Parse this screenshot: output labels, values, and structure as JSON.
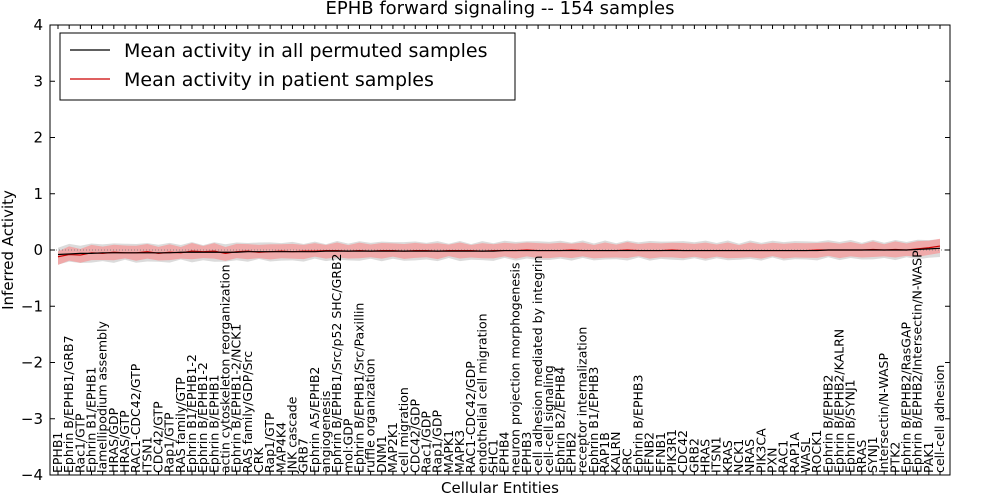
{
  "chart_data": {
    "type": "line",
    "title": "EPHB forward signaling -- 154 samples",
    "xlabel": "Cellular Entities",
    "ylabel": "Inferred Activity",
    "ylim": [
      -4,
      4
    ],
    "yticks": [
      -4,
      -3,
      -2,
      -1,
      0,
      1,
      2,
      3,
      4
    ],
    "legend_position": "top-left",
    "grid": false,
    "colors": {
      "permuted_line": "#000000",
      "patient_line": "#cc0000",
      "permuted_band": "#cccccc",
      "patient_band": "#ff8080",
      "zero_reference": "#888888"
    },
    "categories": [
      "EPHB1",
      "Ephrin B/EPHB1/GRB7",
      "Rac1/GTP",
      "Ephrin B1/EPHB1",
      "lamellipodium assembly",
      "HRAS/GDP",
      "HRAS/GTP",
      "RAC1-CDC42/GTP",
      "ITSN1",
      "CDC42/GTP",
      "Rap1/GTP",
      "RAS family/GTP",
      "Ephrin B1/EPHB1-2",
      "Ephrin B/EPHB1-2",
      "Ephrin B/EPHB1",
      "actin cytoskeleton reorganization",
      "Ephrin B/EPHB1-2/NCK1",
      "RAS family/GDP/Src",
      "CRK",
      "Rap1/GTP",
      "MAP4K4",
      "JNK cascade",
      "GRB7",
      "Ephrin A5/EPHB2",
      "angiogenesis",
      "Ephrin B/EPHB1/Src/p52 SHC/GRB2",
      "mol:GDP",
      "Ephrin B/EPHB1/Src/Paxillin",
      "ruffle organization",
      "DNM1",
      "MAP2K1",
      "cell migration",
      "CDC42/GDP",
      "Rac1/GDP",
      "Rap1/GDP",
      "MAPK1",
      "MAPK3",
      "RAC1-CDC42/GDP",
      "endothelial cell migration",
      "SHC1",
      "EPHB4",
      "neuron projection morphogenesis",
      "EPHB3",
      "cell adhesion mediated by integrin",
      "cell-cell signaling",
      "Ephrin B2/EPHB4",
      "EPHB2",
      "receptor internalization",
      "Ephrin B1/EPHB3",
      "RAP1B",
      "KALRN",
      "SRC",
      "Ephrin B/EPHB3",
      "EFNB2",
      "EFNB1",
      "PIK3R1",
      "CDC42",
      "GRB2",
      "HRAS",
      "ITSN1",
      "KRAS",
      "NCK1",
      "NRAS",
      "PIK3CA",
      "PXN",
      "RAC1",
      "RAP1A",
      "WASL",
      "ROCK1",
      "Ephrin B/EPHB2",
      "Ephrin B/EPHB2/KALRN",
      "Ephrin B/SYNJ1",
      "RRAS",
      "SYNJ1",
      "Intersectin/N-WASP",
      "PTK2",
      "Ephrin B/EPHB2/RasGAP",
      "Ephrin B/EPHB2/Intersectin/N-WASP",
      "PAK1",
      "cell-cell adhesion"
    ],
    "series": [
      {
        "name": "Mean activity in all permuted samples",
        "values": [
          -0.08,
          -0.07,
          -0.06,
          -0.06,
          -0.05,
          -0.05,
          -0.05,
          -0.05,
          -0.05,
          -0.05,
          -0.05,
          -0.04,
          -0.04,
          -0.04,
          -0.04,
          -0.04,
          -0.04,
          -0.03,
          -0.03,
          -0.03,
          -0.03,
          -0.03,
          -0.03,
          -0.03,
          -0.02,
          -0.02,
          -0.02,
          -0.02,
          -0.02,
          -0.02,
          -0.02,
          -0.02,
          -0.02,
          -0.02,
          -0.02,
          -0.02,
          -0.02,
          -0.02,
          -0.02,
          -0.02,
          -0.01,
          -0.01,
          -0.01,
          -0.01,
          -0.01,
          -0.01,
          -0.01,
          -0.01,
          -0.01,
          -0.01,
          -0.01,
          -0.01,
          -0.01,
          -0.01,
          -0.01,
          -0.01,
          -0.01,
          -0.01,
          -0.01,
          -0.01,
          -0.01,
          -0.01,
          -0.01,
          -0.01,
          -0.01,
          -0.01,
          -0.01,
          -0.01,
          -0.01,
          0.0,
          0.0,
          0.0,
          0.0,
          0.0,
          0.0,
          0.0,
          0.0,
          0.01,
          0.02,
          0.03
        ],
        "band": 0.15
      },
      {
        "name": "Mean activity in patient samples",
        "values": [
          -0.12,
          -0.08,
          -0.09,
          -0.05,
          -0.06,
          -0.04,
          -0.05,
          -0.05,
          -0.03,
          -0.06,
          -0.04,
          -0.05,
          -0.02,
          -0.03,
          -0.02,
          -0.06,
          -0.03,
          -0.02,
          -0.04,
          -0.03,
          -0.02,
          -0.03,
          -0.02,
          -0.02,
          -0.01,
          -0.01,
          -0.02,
          -0.01,
          -0.02,
          -0.01,
          -0.01,
          -0.02,
          -0.01,
          -0.01,
          -0.02,
          -0.01,
          -0.01,
          -0.01,
          -0.02,
          -0.01,
          -0.01,
          -0.01,
          0.0,
          -0.01,
          -0.01,
          -0.01,
          0.0,
          -0.01,
          -0.01,
          -0.01,
          -0.01,
          0.0,
          -0.01,
          -0.01,
          -0.01,
          0.0,
          -0.01,
          -0.01,
          -0.01,
          -0.01,
          -0.01,
          -0.01,
          -0.01,
          -0.01,
          -0.01,
          -0.01,
          -0.01,
          -0.01,
          0.0,
          0.0,
          0.0,
          0.0,
          0.0,
          0.01,
          0.0,
          0.01,
          0.0,
          0.02,
          0.04,
          0.07
        ],
        "band": 0.12
      }
    ]
  }
}
